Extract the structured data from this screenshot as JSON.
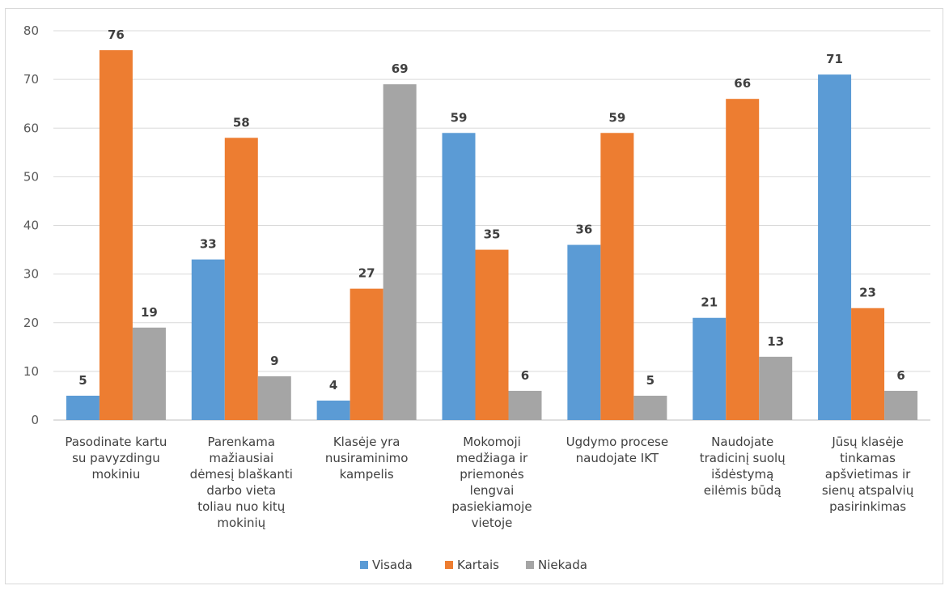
{
  "chart_data": {
    "type": "bar",
    "title": "",
    "xlabel": "",
    "ylabel": "",
    "ylim": [
      0,
      80
    ],
    "yticks": [
      0,
      10,
      20,
      30,
      40,
      50,
      60,
      70,
      80
    ],
    "grid": "horizontal",
    "legend_position": "bottom",
    "categories": [
      [
        "Pasodinate kartu",
        "su pavyzdingu",
        "mokiniu"
      ],
      [
        "Parenkama",
        "mažiausiai",
        "dėmesį blaškanti",
        "darbo vieta",
        "toliau nuo kitų",
        "mokinių"
      ],
      [
        "Klasėje yra",
        "nusiraminimo",
        "kampelis"
      ],
      [
        "Mokomoji",
        "medžiaga ir",
        "priemonės",
        "lengvai",
        "pasiekiamoje",
        "vietoje"
      ],
      [
        "Ugdymo procese",
        "naudojate IKT"
      ],
      [
        "Naudojate",
        "tradicinį suolų",
        "išdėstymą",
        "eilėmis būdą"
      ],
      [
        "Jūsų klasėje",
        "tinkamas",
        "apšvietimas ir",
        "sienų atspalvių",
        "pasirinkimas"
      ]
    ],
    "series": [
      {
        "name": "Visada",
        "color": "#5b9bd5",
        "values": [
          5,
          33,
          4,
          59,
          36,
          21,
          71
        ]
      },
      {
        "name": "Kartais",
        "color": "#ed7d31",
        "values": [
          76,
          58,
          27,
          35,
          59,
          66,
          23
        ]
      },
      {
        "name": "Niekada",
        "color": "#a5a5a5",
        "values": [
          19,
          9,
          69,
          6,
          5,
          13,
          6
        ]
      }
    ]
  }
}
